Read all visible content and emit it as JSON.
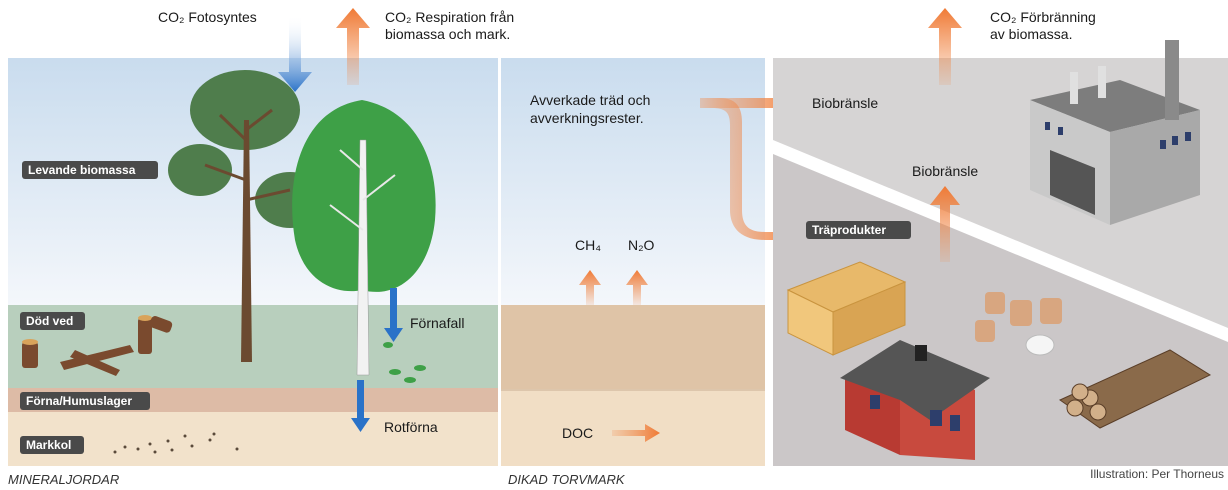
{
  "labels": {
    "co2_photosynthesis": "CO₂ Fotosyntes",
    "co2_respiration": {
      "lines": [
        "CO₂ Respiration från",
        "biomassa och mark."
      ]
    },
    "co2_combustion": {
      "lines": [
        "CO₂ Förbränning",
        "av biomassa."
      ]
    },
    "living_biomass": "Levande biomassa",
    "dead_wood": "Död ved",
    "litter_humus": "Förna/Humuslager",
    "soil_carbon": "Markkol",
    "litterfall": "Förnafall",
    "root_litter": "Rotförna",
    "harvested": {
      "lines": [
        "Avverkade träd och",
        "avverkningsrester."
      ]
    },
    "biofuel_top": "Biobränsle",
    "biofuel_mid": "Biobränsle",
    "wood_products": "Träprodukter",
    "ch4": "CH₄",
    "n2o": "N₂O",
    "doc": "DOC",
    "mineral_soils": "MINERALJORDAR",
    "drained_peatland": "DIKAD TORVMARK",
    "credit": "Illustration: Per Thorneus"
  }
}
